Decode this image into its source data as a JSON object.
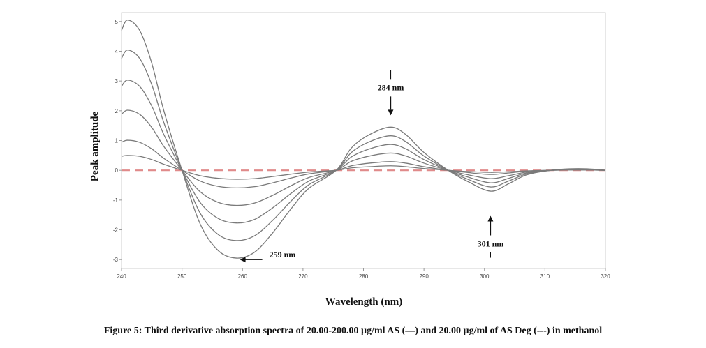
{
  "chart_data": {
    "type": "line",
    "xlabel": "Wavelength (nm)",
    "ylabel": "Peak amplitude",
    "xlim": [
      240,
      320
    ],
    "ylim": [
      -3.3,
      5.3
    ],
    "x_ticks": [
      "240",
      "250",
      "260",
      "270",
      "280",
      "290",
      "300",
      "310",
      "320"
    ],
    "y_ticks": [
      "-3",
      "-2",
      "-1",
      "0",
      "1",
      "2",
      "3",
      "4",
      "5"
    ],
    "grid": false,
    "series_color": "#7a7a7a",
    "deg_color": "#e08a8a",
    "x": [
      240,
      241,
      243,
      245,
      247,
      250,
      253,
      256,
      259,
      262,
      265,
      268,
      271,
      275.5,
      278,
      281,
      284.5,
      287,
      290,
      294,
      297,
      301,
      304,
      307,
      311,
      314,
      317,
      320
    ],
    "series": [
      {
        "values": [
          4.7,
          5.05,
          4.7,
          3.6,
          2.0,
          0.0,
          -1.8,
          -2.7,
          -2.95,
          -2.75,
          -2.1,
          -1.3,
          -0.6,
          0.0,
          0.75,
          1.2,
          1.45,
          1.2,
          0.6,
          0.0,
          -0.35,
          -0.7,
          -0.45,
          -0.15,
          0.0,
          0.05,
          0.05,
          0.0
        ]
      },
      {
        "values": [
          3.76,
          4.04,
          3.76,
          2.88,
          1.6,
          0.0,
          -1.44,
          -2.16,
          -2.36,
          -2.2,
          -1.68,
          -1.04,
          -0.48,
          0.0,
          0.6,
          0.96,
          1.16,
          0.96,
          0.48,
          0.0,
          -0.28,
          -0.56,
          -0.36,
          -0.12,
          0.0,
          0.04,
          0.04,
          0.0
        ]
      },
      {
        "values": [
          2.82,
          3.03,
          2.82,
          2.16,
          1.2,
          0.0,
          -1.08,
          -1.62,
          -1.77,
          -1.65,
          -1.26,
          -0.78,
          -0.36,
          0.0,
          0.45,
          0.72,
          0.87,
          0.72,
          0.36,
          0.0,
          -0.21,
          -0.42,
          -0.27,
          -0.09,
          0.0,
          0.03,
          0.03,
          0.0
        ]
      },
      {
        "values": [
          1.88,
          2.02,
          1.88,
          1.44,
          0.8,
          0.0,
          -0.72,
          -1.08,
          -1.18,
          -1.1,
          -0.84,
          -0.52,
          -0.24,
          0.0,
          0.3,
          0.48,
          0.58,
          0.48,
          0.24,
          0.0,
          -0.14,
          -0.28,
          -0.18,
          -0.06,
          0.0,
          0.02,
          0.02,
          0.0
        ]
      },
      {
        "values": [
          0.94,
          1.01,
          0.94,
          0.72,
          0.4,
          0.0,
          -0.36,
          -0.54,
          -0.59,
          -0.55,
          -0.42,
          -0.26,
          -0.12,
          0.0,
          0.15,
          0.24,
          0.29,
          0.24,
          0.12,
          0.0,
          -0.07,
          -0.14,
          -0.09,
          -0.03,
          0.0,
          0.01,
          0.01,
          0.0
        ]
      },
      {
        "values": [
          0.47,
          0.5,
          0.47,
          0.36,
          0.2,
          0.0,
          -0.18,
          -0.27,
          -0.3,
          -0.28,
          -0.21,
          -0.13,
          -0.06,
          0.0,
          0.08,
          0.12,
          0.15,
          0.12,
          0.06,
          0.0,
          -0.04,
          -0.07,
          -0.05,
          -0.02,
          0.0,
          0.01,
          0.01,
          0.0
        ]
      }
    ],
    "deg_series": {
      "values": [
        0.0,
        0.0,
        0.0,
        0.0,
        0.0,
        0.0,
        0.0,
        0.0,
        0.0,
        0.0,
        0.0,
        0.0,
        0.0,
        0.0,
        0.0,
        0.0,
        0.0,
        0.0,
        0.0,
        0.0,
        0.0,
        0.0,
        0.0,
        0.0,
        0.0,
        0.0,
        0.0,
        0.0
      ]
    },
    "annotations": [
      {
        "text": "284 nm",
        "x": 284.5,
        "y": 2.55,
        "arrow": "down"
      },
      {
        "text": "259 nm",
        "x": 259,
        "y": -3.0,
        "arrow": "left"
      },
      {
        "text": "301 nm",
        "x": 301,
        "y": -2.0,
        "arrow": "up"
      }
    ]
  },
  "caption": "Figure 5: Third derivative absorption spectra of 20.00-200.00 µg/ml AS (—) and 20.00 µg/ml of AS Deg (---) in methanol"
}
